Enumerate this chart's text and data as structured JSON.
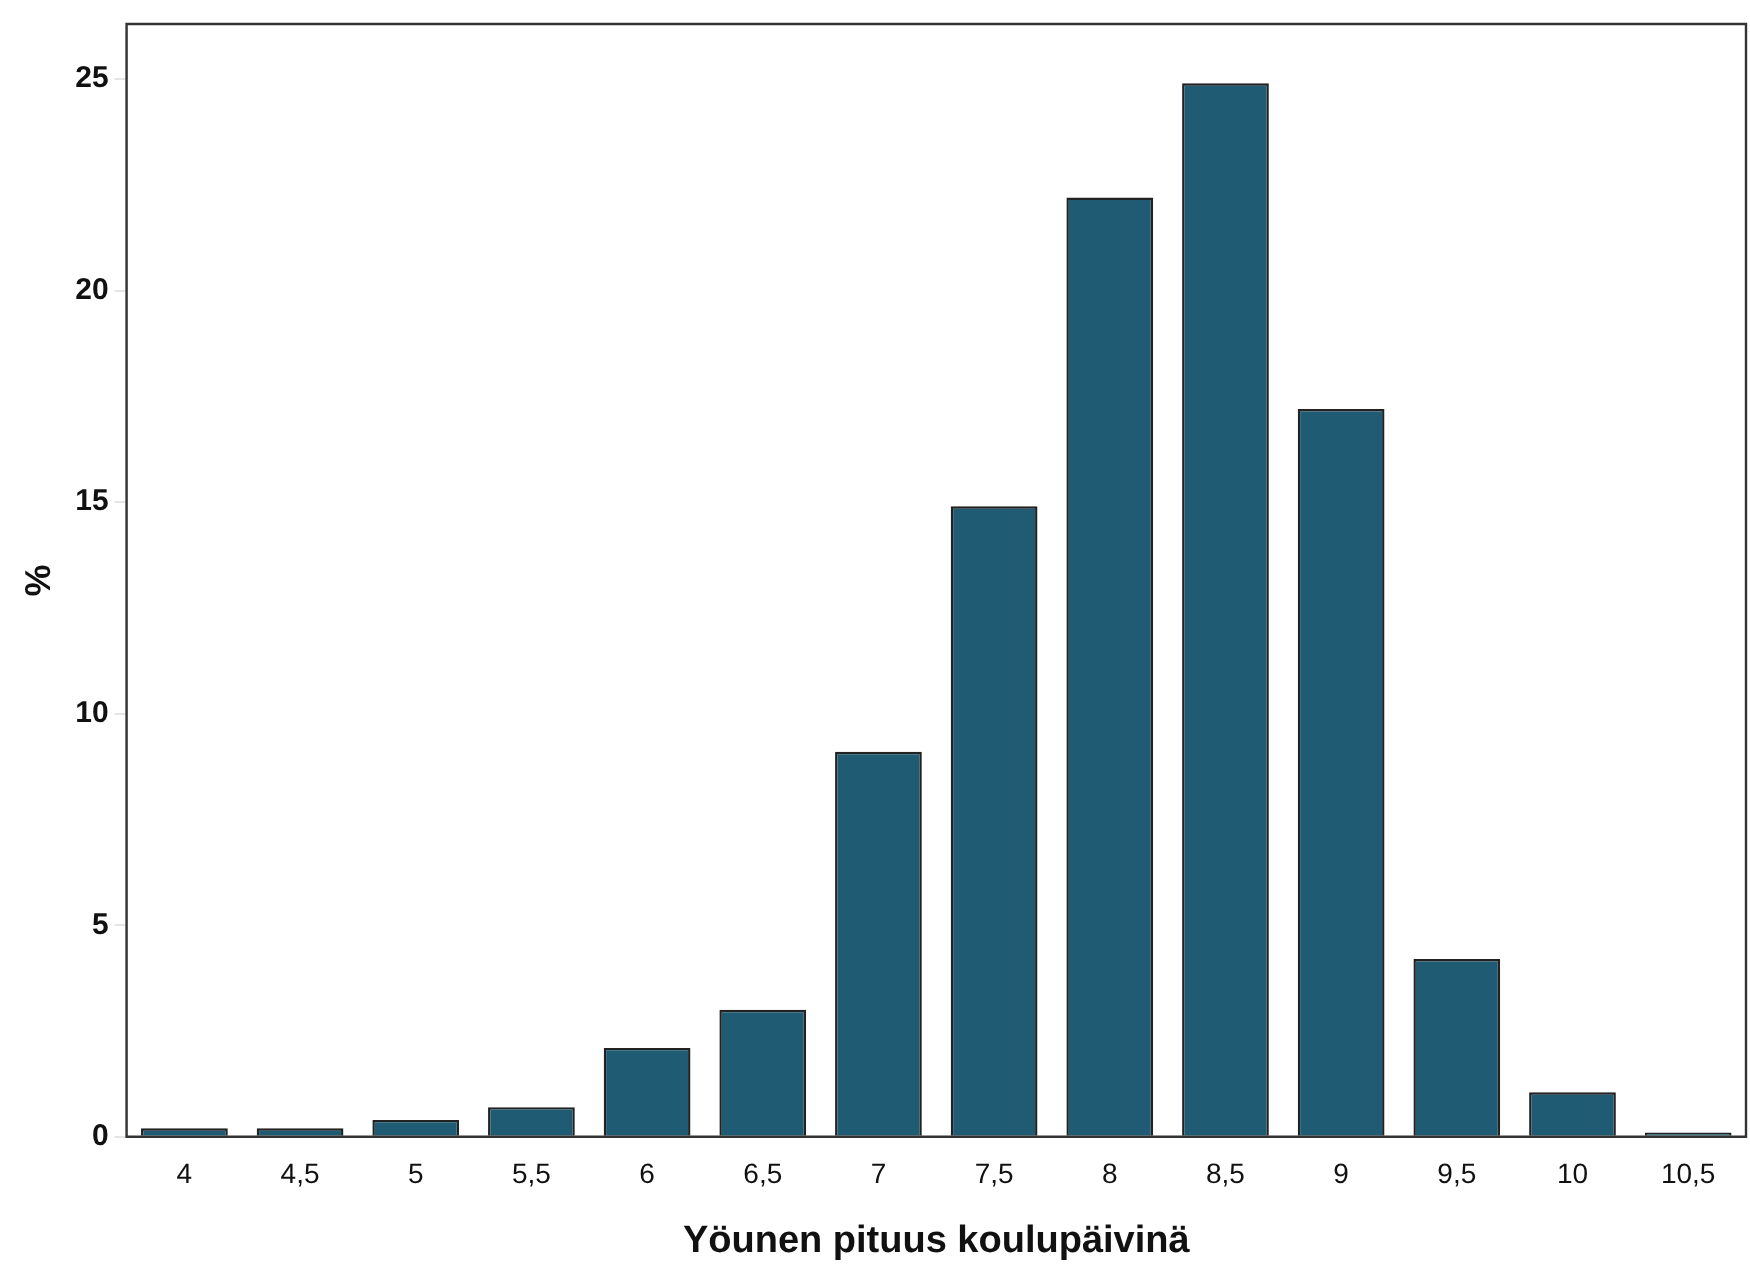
{
  "chart_data": {
    "type": "bar",
    "xlabel": "Yöunen pituus koulupäivinä",
    "ylabel": "%",
    "categories": [
      "4",
      "4,5",
      "5",
      "5,5",
      "6",
      "6,5",
      "7",
      "7,5",
      "8",
      "8,5",
      "9",
      "9,5",
      "10",
      "10,5"
    ],
    "values": [
      0.2,
      0.2,
      0.4,
      0.7,
      2.1,
      3.0,
      9.1,
      14.9,
      22.2,
      24.9,
      17.2,
      4.2,
      1.05,
      0.1
    ],
    "color": "#1f5c73",
    "ylim": [
      0,
      26.3
    ],
    "yticks": [
      0,
      5,
      10,
      15,
      20,
      25
    ],
    "grid": false,
    "legend": false
  }
}
